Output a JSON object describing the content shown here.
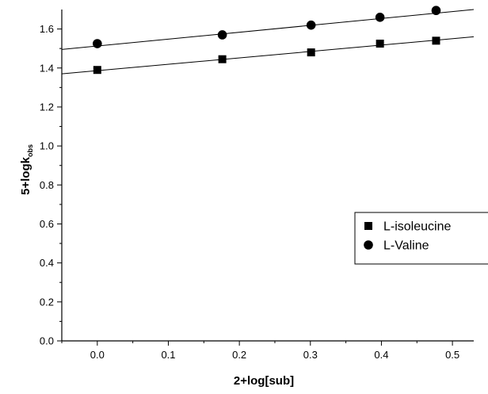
{
  "chart_data": {
    "type": "scatter",
    "xlabel": "2+log[sub]",
    "ylabel": {
      "main": "5+logk",
      "sub": "obs"
    },
    "xlim": [
      -0.05,
      0.53
    ],
    "ylim": [
      0.0,
      1.7
    ],
    "xticks": [
      0.0,
      0.1,
      0.2,
      0.3,
      0.4,
      0.5
    ],
    "xtick_labels": [
      "0.0",
      "0.1",
      "0.2",
      "0.3",
      "0.4",
      "0.5"
    ],
    "yticks": [
      0.0,
      0.2,
      0.4,
      0.6,
      0.8,
      1.0,
      1.2,
      1.4,
      1.6
    ],
    "ytick_labels": [
      "0.0",
      "0.2",
      "0.4",
      "0.6",
      "0.8",
      "1.0",
      "1.2",
      "1.4",
      "1.6"
    ],
    "grid": false,
    "legend_position": "middle-right",
    "series": [
      {
        "name": "L-isoleucine",
        "marker": "square",
        "color": "#000000",
        "x": [
          0.0,
          0.176,
          0.301,
          0.398,
          0.477
        ],
        "y": [
          1.39,
          1.445,
          1.48,
          1.525,
          1.54
        ],
        "fit": {
          "x": [
            -0.05,
            0.53
          ],
          "y": [
            1.37,
            1.56
          ]
        }
      },
      {
        "name": "L-Valine",
        "marker": "circle",
        "color": "#000000",
        "x": [
          0.0,
          0.176,
          0.301,
          0.398,
          0.477
        ],
        "y": [
          1.525,
          1.57,
          1.62,
          1.66,
          1.695
        ],
        "fit": {
          "x": [
            -0.05,
            0.53
          ],
          "y": [
            1.495,
            1.7
          ]
        }
      }
    ]
  }
}
